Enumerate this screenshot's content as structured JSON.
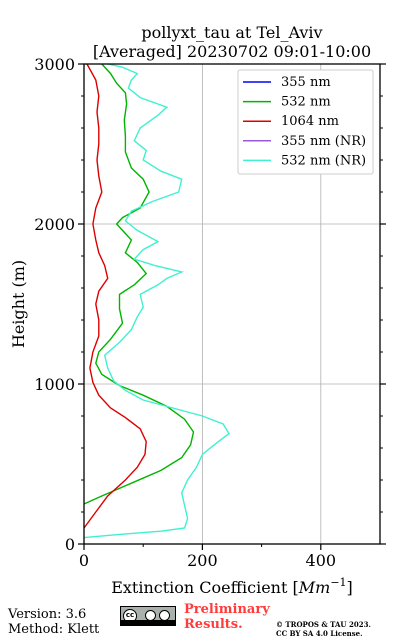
{
  "chart_data": {
    "type": "line",
    "title": "pollyxt_tau at Tel_Aviv",
    "subtitle": "[Averaged] 20230702 09:01-10:00",
    "xlabel": "Extinction Coefficient [Mm^-1]",
    "ylabel": "Height (m)",
    "xlim": [
      0,
      500
    ],
    "ylim": [
      0,
      3000
    ],
    "xticks": [
      "0",
      "200",
      "400"
    ],
    "yticks": [
      "0",
      "1000",
      "2000",
      "3000"
    ],
    "grid": true,
    "legend_position": "top-right",
    "series": [
      {
        "name": "355 nm",
        "color": "#0000ff",
        "points": []
      },
      {
        "name": "532 nm",
        "color": "#00b400",
        "points": [
          [
            0,
            250
          ],
          [
            30,
            300
          ],
          [
            80,
            380
          ],
          [
            130,
            460
          ],
          [
            165,
            540
          ],
          [
            180,
            620
          ],
          [
            185,
            700
          ],
          [
            170,
            780
          ],
          [
            140,
            860
          ],
          [
            100,
            930
          ],
          [
            60,
            990
          ],
          [
            30,
            1060
          ],
          [
            20,
            1130
          ],
          [
            25,
            1200
          ],
          [
            45,
            1280
          ],
          [
            65,
            1380
          ],
          [
            60,
            1470
          ],
          [
            60,
            1560
          ],
          [
            85,
            1620
          ],
          [
            105,
            1690
          ],
          [
            90,
            1760
          ],
          [
            70,
            1820
          ],
          [
            80,
            1900
          ],
          [
            65,
            1960
          ],
          [
            55,
            2000
          ],
          [
            65,
            2040
          ],
          [
            95,
            2100
          ],
          [
            110,
            2200
          ],
          [
            100,
            2280
          ],
          [
            80,
            2350
          ],
          [
            70,
            2450
          ],
          [
            70,
            2550
          ],
          [
            68,
            2650
          ],
          [
            72,
            2750
          ],
          [
            70,
            2820
          ],
          [
            55,
            2880
          ],
          [
            45,
            2940
          ],
          [
            30,
            3000
          ]
        ]
      },
      {
        "name": "1064 nm",
        "color": "#dc0000",
        "points": [
          [
            0,
            100
          ],
          [
            20,
            200
          ],
          [
            40,
            300
          ],
          [
            70,
            400
          ],
          [
            90,
            480
          ],
          [
            103,
            560
          ],
          [
            105,
            640
          ],
          [
            95,
            720
          ],
          [
            70,
            790
          ],
          [
            45,
            850
          ],
          [
            25,
            930
          ],
          [
            15,
            1010
          ],
          [
            10,
            1100
          ],
          [
            15,
            1200
          ],
          [
            25,
            1300
          ],
          [
            25,
            1400
          ],
          [
            20,
            1500
          ],
          [
            25,
            1580
          ],
          [
            40,
            1660
          ],
          [
            35,
            1740
          ],
          [
            25,
            1820
          ],
          [
            20,
            1900
          ],
          [
            15,
            2000
          ],
          [
            20,
            2100
          ],
          [
            30,
            2200
          ],
          [
            25,
            2300
          ],
          [
            22,
            2400
          ],
          [
            25,
            2500
          ],
          [
            25,
            2600
          ],
          [
            22,
            2700
          ],
          [
            25,
            2800
          ],
          [
            20,
            2900
          ],
          [
            5,
            3000
          ]
        ]
      },
      {
        "name": "355 nm (NR)",
        "color": "#9b59e0",
        "points": []
      },
      {
        "name": "532 nm (NR)",
        "color": "#40f0d0",
        "points": [
          [
            0,
            40
          ],
          [
            60,
            60
          ],
          [
            130,
            80
          ],
          [
            170,
            100
          ],
          [
            175,
            160
          ],
          [
            170,
            240
          ],
          [
            165,
            320
          ],
          [
            175,
            400
          ],
          [
            190,
            480
          ],
          [
            200,
            560
          ],
          [
            220,
            620
          ],
          [
            245,
            690
          ],
          [
            235,
            750
          ],
          [
            200,
            800
          ],
          [
            150,
            850
          ],
          [
            100,
            900
          ],
          [
            70,
            960
          ],
          [
            50,
            1020
          ],
          [
            40,
            1100
          ],
          [
            35,
            1180
          ],
          [
            60,
            1260
          ],
          [
            80,
            1340
          ],
          [
            90,
            1420
          ],
          [
            100,
            1480
          ],
          [
            95,
            1560
          ],
          [
            125,
            1620
          ],
          [
            140,
            1660
          ],
          [
            165,
            1700
          ],
          [
            120,
            1740
          ],
          [
            85,
            1780
          ],
          [
            100,
            1840
          ],
          [
            125,
            1890
          ],
          [
            90,
            1960
          ],
          [
            70,
            2020
          ],
          [
            80,
            2080
          ],
          [
            115,
            2140
          ],
          [
            160,
            2200
          ],
          [
            165,
            2280
          ],
          [
            130,
            2330
          ],
          [
            100,
            2400
          ],
          [
            105,
            2460
          ],
          [
            85,
            2520
          ],
          [
            95,
            2600
          ],
          [
            125,
            2680
          ],
          [
            140,
            2730
          ],
          [
            95,
            2790
          ],
          [
            75,
            2850
          ],
          [
            80,
            2900
          ],
          [
            90,
            2940
          ],
          [
            65,
            2980
          ],
          [
            40,
            3000
          ]
        ]
      }
    ]
  },
  "footer": {
    "version_label": "Version: 3.6",
    "method_label": "Method: Klett",
    "preliminary_line1": "Preliminary",
    "preliminary_line2": "Results.",
    "copyright_line1": "© TROPOS & TAU 2023.",
    "copyright_line2": "CC BY SA 4.0 License.",
    "license_badge_icon": "creative-commons-by-sa-icon",
    "license_badge_text": "cc"
  }
}
